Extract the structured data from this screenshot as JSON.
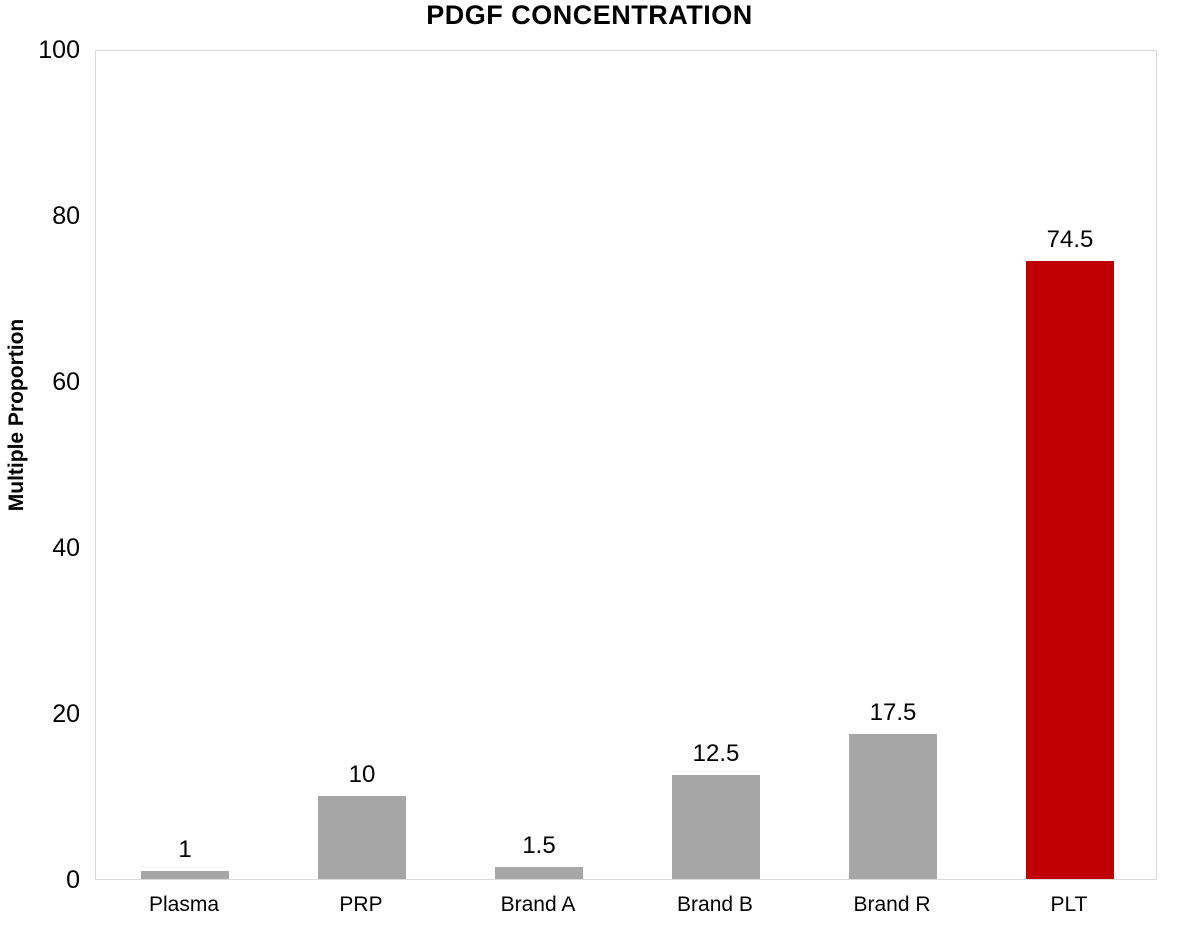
{
  "title": "PDGF CONCENTRATION",
  "colors": {
    "bar_default": "#a6a6a6",
    "bar_highlight": "#c00000",
    "axis_line": "#d9d9d9",
    "text": "#000000",
    "background": "#ffffff"
  },
  "chart_data": {
    "type": "bar",
    "title": "PDGF CONCENTRATION",
    "categories": [
      "Plasma",
      "PRP",
      "Brand A",
      "Brand B",
      "Brand R",
      "PLT"
    ],
    "values": [
      1,
      10,
      1.5,
      12.5,
      17.5,
      74.5
    ],
    "value_labels": [
      "1",
      "10",
      "1.5",
      "12.5",
      "17.5",
      "74.5"
    ],
    "bar_colors": [
      "#a6a6a6",
      "#a6a6a6",
      "#a6a6a6",
      "#a6a6a6",
      "#a6a6a6",
      "#c00000"
    ],
    "xlabel": "",
    "ylabel": "Multiple Proportion",
    "ylim": [
      0,
      100
    ],
    "yticks": [
      0,
      20,
      40,
      60,
      80,
      100
    ],
    "grid": false,
    "legend": null,
    "data_labels_shown": true
  }
}
